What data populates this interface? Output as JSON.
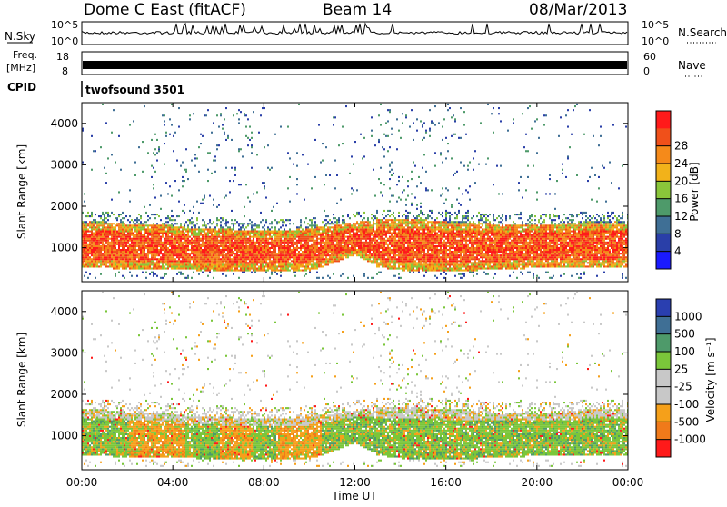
{
  "header": {
    "station": "Dome C East (fitACF)",
    "beam": "Beam 14",
    "date": "08/Mar/2013"
  },
  "aux": {
    "nsky_label": "N.Sky",
    "nsky_ticks": [
      "10^5",
      "10^0"
    ],
    "nsearch_label": "N.Search",
    "nsearch_ticks": [
      "10^5",
      "10^0"
    ],
    "freq_label": "Freq.",
    "freq_unit": "[MHz]",
    "freq_ticks": [
      "18",
      "8"
    ],
    "nave_label": "Nave",
    "nave_ticks": [
      "60",
      "0"
    ],
    "cpid_label": "CPID",
    "cpid_name": "twofsound 3501"
  },
  "chart_data": [
    {
      "type": "heatmap",
      "name_on_chart": "power",
      "ylabel": "Slant Range [km]",
      "yticks": [
        "1000",
        "2000",
        "3000",
        "4000"
      ],
      "ylim": [
        180,
        4500
      ],
      "xlim": [
        0,
        24
      ],
      "colorbar_label": "Power [dB]",
      "colorbar_ticks": [
        "4",
        "8",
        "12",
        "16",
        "20",
        "24",
        "28"
      ],
      "colorbar_colors": [
        "#1a1aff",
        "#2a3fa8",
        "#3f6f95",
        "#4e9a6a",
        "#8ac63a",
        "#f2b21a",
        "#f58a1a",
        "#f0501a",
        "#ff1a1a"
      ],
      "band": {
        "lower_km": [
          500,
          480,
          460,
          470,
          450,
          430,
          420,
          430,
          400,
          390,
          420,
          600,
          800,
          500,
          430,
          420,
          430,
          420,
          450,
          470,
          480,
          500,
          480,
          500,
          520
        ],
        "upper_km": [
          1600,
          1600,
          1550,
          1550,
          1500,
          1450,
          1450,
          1400,
          1400,
          1400,
          1450,
          1500,
          1600,
          1650,
          1650,
          1650,
          1600,
          1600,
          1550,
          1550,
          1550,
          1550,
          1600,
          1600,
          1600
        ]
      }
    },
    {
      "type": "heatmap",
      "name_on_chart": "velocity",
      "ylabel": "Slant Range [km]",
      "yticks": [
        "1000",
        "2000",
        "3000",
        "4000"
      ],
      "ylim": [
        180,
        4500
      ],
      "xlim": [
        0,
        24
      ],
      "xticks": [
        "00:00",
        "04:00",
        "08:00",
        "12:00",
        "16:00",
        "20:00",
        "00:00"
      ],
      "xlabel": "Time UT",
      "colorbar_label": "Velocity [m s⁻¹]",
      "colorbar_ticks": [
        "1000",
        "500",
        "100",
        "25",
        "-25",
        "-100",
        "-500",
        "-1000"
      ],
      "colorbar_colors": [
        "#2a3fb0",
        "#3f6f95",
        "#4e9a6a",
        "#7ac63a",
        "#c8c8c8",
        "#c8c8c8",
        "#f5a01a",
        "#f07a1a",
        "#ff1a1a"
      ]
    }
  ]
}
